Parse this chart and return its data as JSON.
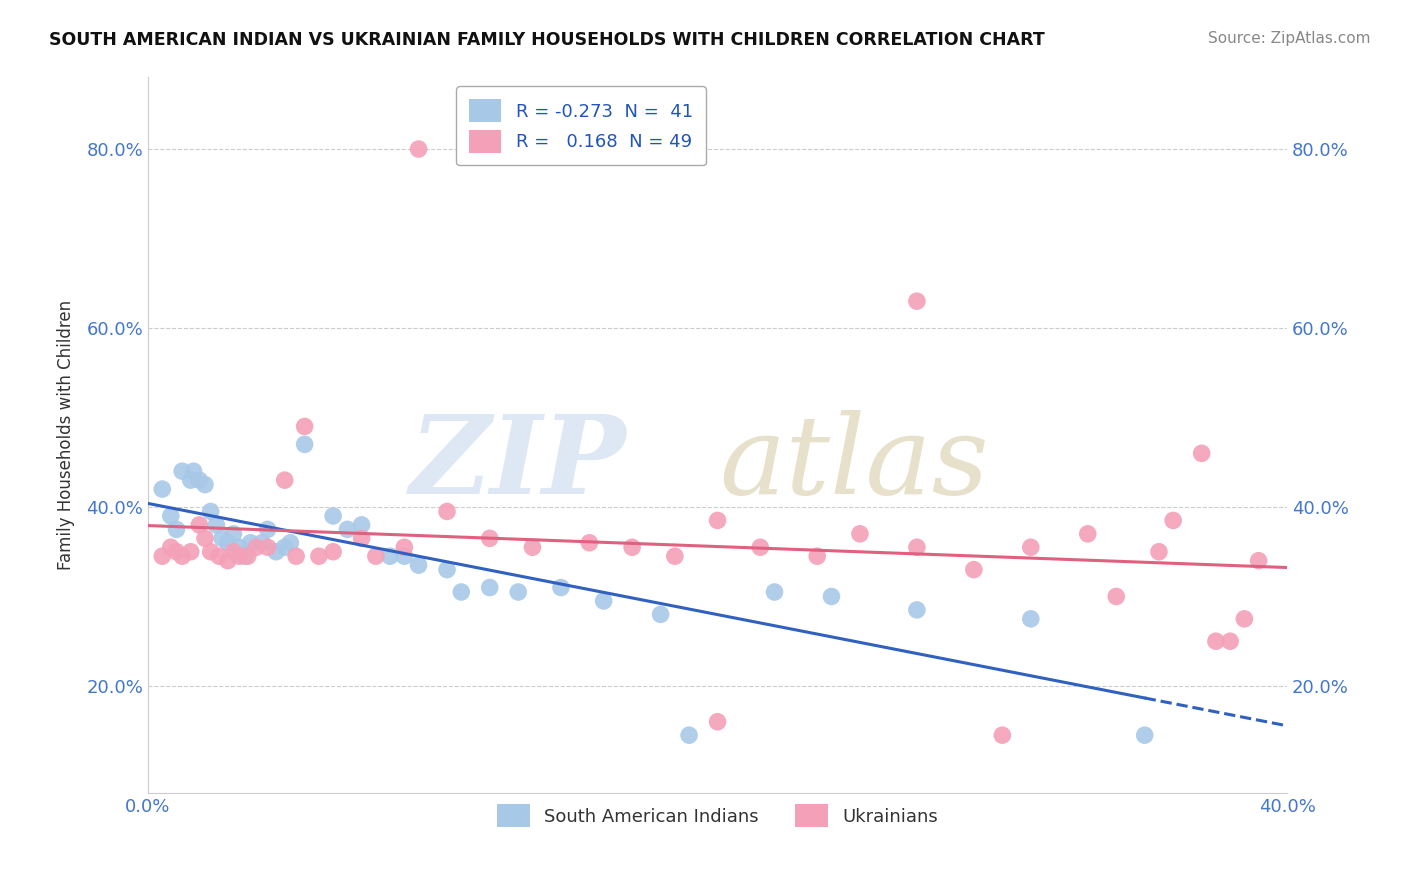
{
  "title": "SOUTH AMERICAN INDIAN VS UKRAINIAN FAMILY HOUSEHOLDS WITH CHILDREN CORRELATION CHART",
  "source": "Source: ZipAtlas.com",
  "ylabel": "Family Households with Children",
  "xlim": [
    0.0,
    0.4
  ],
  "ylim": [
    0.08,
    0.88
  ],
  "xticks": [
    0.0,
    0.1,
    0.2,
    0.3,
    0.4
  ],
  "xticklabels": [
    "0.0%",
    "",
    "",
    "",
    "40.0%"
  ],
  "yticks": [
    0.2,
    0.4,
    0.6,
    0.8
  ],
  "yticklabels": [
    "20.0%",
    "40.0%",
    "60.0%",
    "80.0%"
  ],
  "blue_R": -0.273,
  "blue_N": 41,
  "pink_R": 0.168,
  "pink_N": 49,
  "blue_color": "#a8c8e8",
  "pink_color": "#f4a0b8",
  "blue_line_color": "#3060c0",
  "pink_line_color": "#e06080",
  "legend_label_blue": "South American Indians",
  "legend_label_pink": "Ukrainians",
  "blue_x": [
    0.005,
    0.008,
    0.01,
    0.012,
    0.015,
    0.016,
    0.018,
    0.02,
    0.022,
    0.024,
    0.026,
    0.028,
    0.03,
    0.032,
    0.034,
    0.036,
    0.04,
    0.042,
    0.045,
    0.048,
    0.05,
    0.055,
    0.065,
    0.07,
    0.075,
    0.085,
    0.09,
    0.095,
    0.105,
    0.11,
    0.12,
    0.13,
    0.145,
    0.16,
    0.18,
    0.19,
    0.22,
    0.24,
    0.27,
    0.31,
    0.35
  ],
  "blue_y": [
    0.42,
    0.39,
    0.375,
    0.44,
    0.43,
    0.44,
    0.43,
    0.425,
    0.395,
    0.38,
    0.365,
    0.36,
    0.37,
    0.355,
    0.345,
    0.36,
    0.36,
    0.375,
    0.35,
    0.355,
    0.36,
    0.47,
    0.39,
    0.375,
    0.38,
    0.345,
    0.345,
    0.335,
    0.33,
    0.305,
    0.31,
    0.305,
    0.31,
    0.295,
    0.28,
    0.145,
    0.305,
    0.3,
    0.285,
    0.275,
    0.145
  ],
  "pink_x": [
    0.005,
    0.008,
    0.01,
    0.012,
    0.015,
    0.018,
    0.02,
    0.022,
    0.025,
    0.028,
    0.03,
    0.032,
    0.035,
    0.038,
    0.042,
    0.048,
    0.052,
    0.055,
    0.06,
    0.065,
    0.075,
    0.08,
    0.09,
    0.105,
    0.12,
    0.135,
    0.155,
    0.17,
    0.185,
    0.2,
    0.215,
    0.235,
    0.25,
    0.27,
    0.29,
    0.31,
    0.33,
    0.34,
    0.355,
    0.36,
    0.37,
    0.375,
    0.38,
    0.385,
    0.39,
    0.27,
    0.095,
    0.2,
    0.3
  ],
  "pink_y": [
    0.345,
    0.355,
    0.35,
    0.345,
    0.35,
    0.38,
    0.365,
    0.35,
    0.345,
    0.34,
    0.35,
    0.345,
    0.345,
    0.355,
    0.355,
    0.43,
    0.345,
    0.49,
    0.345,
    0.35,
    0.365,
    0.345,
    0.355,
    0.395,
    0.365,
    0.355,
    0.36,
    0.355,
    0.345,
    0.385,
    0.355,
    0.345,
    0.37,
    0.355,
    0.33,
    0.355,
    0.37,
    0.3,
    0.35,
    0.385,
    0.46,
    0.25,
    0.25,
    0.275,
    0.34,
    0.63,
    0.8,
    0.16,
    0.145
  ]
}
